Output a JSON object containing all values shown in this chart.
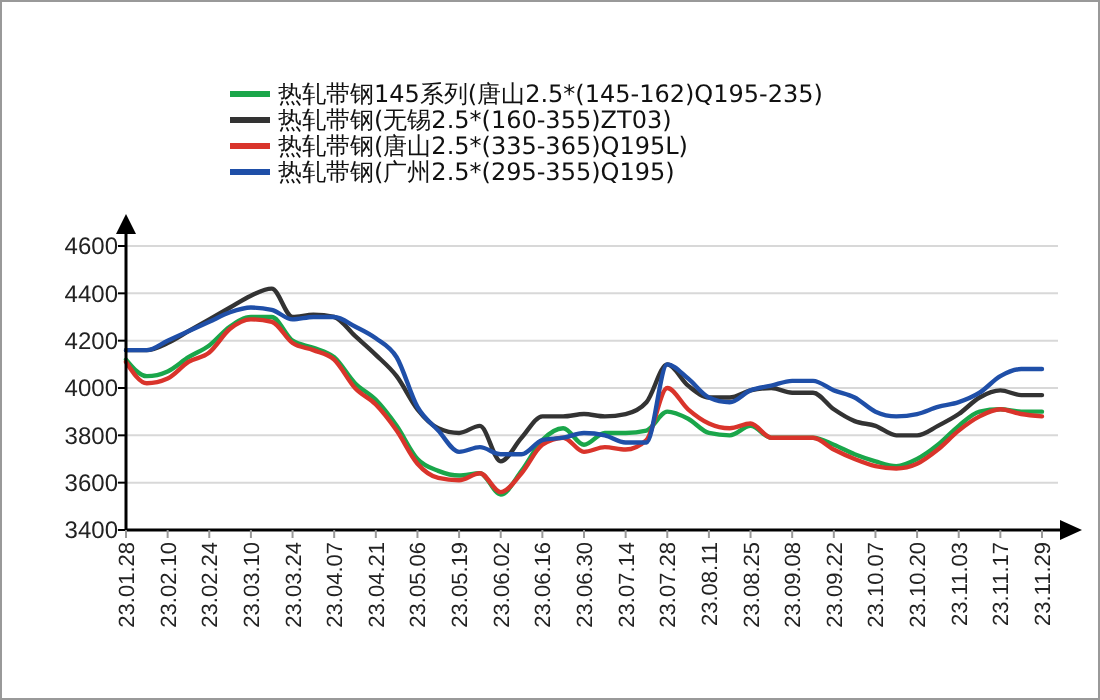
{
  "chart_data": {
    "type": "line",
    "categories": [
      "23.01.28",
      null,
      "23.02.10",
      null,
      "23.02.24",
      null,
      "23.03.10",
      null,
      "23.03.24",
      null,
      "23.04.07",
      null,
      "23.04.21",
      null,
      "23.05.06",
      null,
      "23.05.19",
      null,
      "23.06.02",
      null,
      "23.06.16",
      null,
      "23.06.30",
      null,
      "23.07.14",
      null,
      "23.07.28",
      null,
      "23.08.11",
      null,
      "23.08.25",
      null,
      "23.09.08",
      null,
      "23.09.22",
      null,
      "23.10.07",
      null,
      "23.10.20",
      null,
      "23.11.03",
      null,
      "23.11.17",
      null,
      "23.11.29"
    ],
    "series": [
      {
        "name": "热轧带钢145系列(唐山2.5*(145-162)Q195-235)",
        "color": "#1aa64a",
        "values": [
          4120,
          4050,
          4070,
          4130,
          4180,
          4260,
          4300,
          4300,
          4200,
          4170,
          4130,
          4020,
          3950,
          3840,
          3700,
          3650,
          3630,
          3640,
          3550,
          3650,
          3780,
          3830,
          3760,
          3810,
          3810,
          3820,
          3900,
          3870,
          3810,
          3800,
          3840,
          3790,
          3790,
          3790,
          3760,
          3720,
          3690,
          3670,
          3700,
          3760,
          3840,
          3900,
          3910,
          3900,
          3900
        ]
      },
      {
        "name": "热轧带钢(无锡2.5*(160-355)ZT03)",
        "color": "#333333",
        "values": [
          4160,
          4160,
          4190,
          4240,
          4290,
          4340,
          4390,
          4420,
          4300,
          4310,
          4300,
          4220,
          4140,
          4050,
          3910,
          3830,
          3810,
          3840,
          3690,
          3790,
          3880,
          3880,
          3890,
          3880,
          3890,
          3940,
          4100,
          4010,
          3960,
          3960,
          3990,
          4000,
          3980,
          3980,
          3910,
          3860,
          3840,
          3800,
          3800,
          3840,
          3890,
          3960,
          3990,
          3970,
          3970
        ]
      },
      {
        "name": "热轧带钢(唐山2.5*(335-365)Q195L)",
        "color": "#d9342b",
        "values": [
          4110,
          4020,
          4040,
          4110,
          4150,
          4250,
          4290,
          4280,
          4190,
          4160,
          4120,
          4000,
          3930,
          3820,
          3680,
          3620,
          3610,
          3640,
          3560,
          3640,
          3760,
          3790,
          3730,
          3750,
          3740,
          3780,
          4000,
          3910,
          3850,
          3830,
          3850,
          3790,
          3790,
          3790,
          3740,
          3700,
          3670,
          3660,
          3680,
          3740,
          3820,
          3880,
          3910,
          3890,
          3880
        ]
      },
      {
        "name": "热轧带钢(广州2.5*(295-355)Q195)",
        "color": "#1f4fa8",
        "values": [
          4160,
          4160,
          4200,
          4240,
          4280,
          4320,
          4340,
          4330,
          4290,
          4300,
          4300,
          4260,
          4210,
          4130,
          3920,
          3820,
          3730,
          3750,
          3720,
          3720,
          3780,
          3790,
          3810,
          3800,
          3770,
          3770,
          4100,
          4040,
          3960,
          3940,
          3990,
          4010,
          4030,
          4030,
          3990,
          3960,
          3900,
          3880,
          3890,
          3920,
          3940,
          3980,
          4050,
          4080,
          4080
        ]
      }
    ],
    "ylim": [
      3400,
      4600
    ],
    "yticks": [
      3400,
      3600,
      3800,
      4000,
      4200,
      4400,
      4600
    ],
    "grid": "y",
    "legend": "top left",
    "line_style": "solid",
    "marker": "none"
  }
}
